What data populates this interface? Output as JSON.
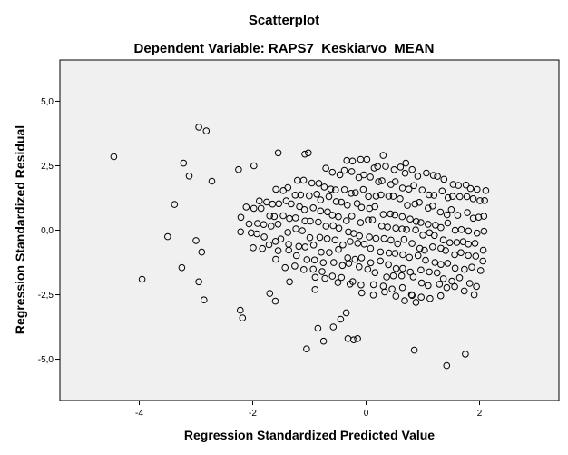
{
  "chart_data": {
    "type": "scatter",
    "title": "Scatterplot",
    "subtitle": "Dependent Variable: RAPS7_Keskiarvo_MEAN",
    "xlabel": "Regression Standardized Predicted Value",
    "ylabel": "Regression Standardized Residual",
    "xlim": [
      -5.4,
      3.4
    ],
    "ylim": [
      -6.6,
      6.6
    ],
    "x_ticks": [
      -4,
      -2,
      0,
      2
    ],
    "x_tick_labels": [
      "-4",
      "-2",
      "0",
      "2"
    ],
    "y_ticks": [
      5,
      2.5,
      0,
      -2.5,
      -5
    ],
    "y_tick_labels": [
      "5,0",
      "2,5",
      "0,0",
      "-2,5",
      "-5,0"
    ],
    "grid": false,
    "plot_background": "#f0f0f0",
    "marker_color": "#000000",
    "outliers": [
      {
        "x": -4.45,
        "y": 2.85
      },
      {
        "x": -3.95,
        "y": -1.9
      },
      {
        "x": -3.5,
        "y": -0.25
      },
      {
        "x": -3.38,
        "y": 1.0
      },
      {
        "x": -3.25,
        "y": -1.45
      },
      {
        "x": -3.22,
        "y": 2.6
      },
      {
        "x": -3.12,
        "y": 2.1
      },
      {
        "x": -3.0,
        "y": -0.4
      },
      {
        "x": -2.95,
        "y": 4.0
      },
      {
        "x": -2.82,
        "y": 3.85
      },
      {
        "x": -2.9,
        "y": -0.85
      },
      {
        "x": -2.86,
        "y": -2.7
      },
      {
        "x": -2.95,
        "y": -2.0
      },
      {
        "x": -2.72,
        "y": 1.9
      },
      {
        "x": -2.22,
        "y": -3.1
      },
      {
        "x": -2.18,
        "y": -3.4
      },
      {
        "x": -1.98,
        "y": 2.5
      },
      {
        "x": -1.55,
        "y": 3.0
      },
      {
        "x": -1.08,
        "y": 2.95
      },
      {
        "x": -1.02,
        "y": 3.0
      },
      {
        "x": -1.05,
        "y": -4.6
      },
      {
        "x": -0.85,
        "y": -3.8
      },
      {
        "x": -0.75,
        "y": -4.3
      },
      {
        "x": -0.58,
        "y": -3.75
      },
      {
        "x": -0.45,
        "y": -3.45
      },
      {
        "x": -0.32,
        "y": -4.2
      },
      {
        "x": -0.22,
        "y": -4.25
      },
      {
        "x": -0.15,
        "y": -4.2
      },
      {
        "x": -0.35,
        "y": -3.2
      },
      {
        "x": 0.85,
        "y": -4.65
      },
      {
        "x": 1.42,
        "y": -5.25
      },
      {
        "x": 1.75,
        "y": -4.8
      },
      {
        "x": 0.8,
        "y": -2.5
      },
      {
        "x": -1.6,
        "y": -2.75
      },
      {
        "x": -1.7,
        "y": -2.45
      },
      {
        "x": -2.25,
        "y": 2.35
      },
      {
        "x": -0.9,
        "y": -2.3
      },
      {
        "x": -1.35,
        "y": -2.0
      },
      {
        "x": 0.3,
        "y": 2.9
      },
      {
        "x": 0.7,
        "y": 2.6
      }
    ],
    "cloud_rows": [
      {
        "y0": 2.2,
        "x_start": -0.35,
        "x_end": 2.1,
        "count": 22
      },
      {
        "y0": 1.7,
        "x_start": -0.7,
        "x_end": 2.1,
        "count": 26
      },
      {
        "y0": 1.2,
        "x_start": -1.2,
        "x_end": 2.1,
        "count": 30
      },
      {
        "y0": 0.75,
        "x_start": -1.6,
        "x_end": 2.05,
        "count": 32
      },
      {
        "y0": 0.3,
        "x_start": -1.9,
        "x_end": 2.05,
        "count": 34
      },
      {
        "y0": -0.15,
        "x_start": -2.1,
        "x_end": 2.05,
        "count": 34
      },
      {
        "y0": -0.6,
        "x_start": -2.2,
        "x_end": 2.0,
        "count": 32
      },
      {
        "y0": -1.05,
        "x_start": -2.2,
        "x_end": 1.95,
        "count": 30
      },
      {
        "y0": -1.5,
        "x_start": -2.0,
        "x_end": 1.9,
        "count": 26
      },
      {
        "y0": -1.95,
        "x_start": -1.6,
        "x_end": 1.3,
        "count": 18
      },
      {
        "y0": -2.35,
        "x_start": -0.9,
        "x_end": 0.9,
        "count": 10
      }
    ],
    "cloud_slope": -0.48
  }
}
